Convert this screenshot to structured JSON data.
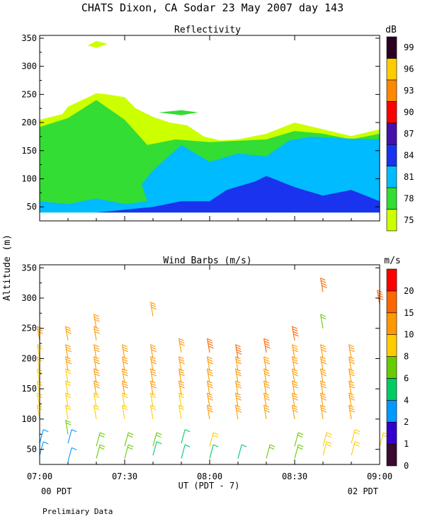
{
  "figure": {
    "title": "CHATS Dixon, CA  Sodar  23 May 2007  day 143",
    "shared_ylabel": "Altitude (m)",
    "xlabel": "UT  (PDT - 7)",
    "x_left_note": "00 PDT",
    "x_right_note": "02 PDT",
    "footer": "Prelimiary Data"
  },
  "chart_data": [
    {
      "type": "heatmap",
      "title": "Reflectivity",
      "colorbar_unit": "dB",
      "x_ticks": [
        "07:00",
        "07:30",
        "08:00",
        "08:30",
        "09:00"
      ],
      "xlim": [
        0,
        120
      ],
      "y_ticks": [
        50,
        100,
        150,
        200,
        250,
        300,
        350
      ],
      "ylim": [
        25,
        355
      ],
      "colorbar": {
        "labels": [
          "75",
          "78",
          "81",
          "84",
          "87",
          "90",
          "93",
          "96",
          "99"
        ],
        "colors": [
          "#ccff00",
          "#33dd33",
          "#00bbff",
          "#1a33ee",
          "#4411aa",
          "#ff0000",
          "#ff8800",
          "#ffcc00",
          "#2a0022"
        ]
      },
      "contours": [
        {
          "level": "75 dB",
          "color": "#ccff00",
          "points": [
            [
              0,
              205
            ],
            [
              8,
              215
            ],
            [
              10,
              228
            ],
            [
              20,
              252
            ],
            [
              24,
              250
            ],
            [
              30,
              245
            ],
            [
              34,
              225
            ],
            [
              40,
              210
            ],
            [
              46,
              200
            ],
            [
              52,
              195
            ],
            [
              58,
              175
            ],
            [
              64,
              168
            ],
            [
              70,
              170
            ],
            [
              80,
              180
            ],
            [
              90,
              200
            ],
            [
              100,
              188
            ],
            [
              110,
              176
            ],
            [
              120,
              188
            ],
            [
              120,
              40
            ],
            [
              0,
              40
            ]
          ]
        },
        {
          "level": "75 dB",
          "color": "#ccff00",
          "points": [
            [
              17,
              337
            ],
            [
              20,
              345
            ],
            [
              24,
              340
            ],
            [
              20,
              333
            ]
          ]
        },
        {
          "level": "78 dB",
          "color": "#33dd33",
          "points": [
            [
              0,
              192
            ],
            [
              10,
              208
            ],
            [
              20,
              240
            ],
            [
              30,
              205
            ],
            [
              38,
              160
            ],
            [
              48,
              170
            ],
            [
              60,
              165
            ],
            [
              80,
              170
            ],
            [
              90,
              185
            ],
            [
              100,
              180
            ],
            [
              110,
              170
            ],
            [
              120,
              180
            ],
            [
              120,
              40
            ],
            [
              0,
              40
            ]
          ]
        },
        {
          "level": "78 dB",
          "color": "#33dd33",
          "points": [
            [
              42,
              218
            ],
            [
              50,
              222
            ],
            [
              56,
              218
            ],
            [
              50,
              213
            ]
          ]
        },
        {
          "level": "81 dB",
          "color": "#00bbff",
          "points": [
            [
              0,
              60
            ],
            [
              10,
              55
            ],
            [
              20,
              65
            ],
            [
              30,
              55
            ],
            [
              38,
              60
            ],
            [
              36,
              90
            ],
            [
              40,
              115
            ],
            [
              50,
              160
            ],
            [
              60,
              130
            ],
            [
              70,
              145
            ],
            [
              80,
              140
            ],
            [
              88,
              168
            ],
            [
              96,
              175
            ],
            [
              106,
              172
            ],
            [
              120,
              170
            ],
            [
              120,
              40
            ],
            [
              0,
              40
            ]
          ]
        },
        {
          "level": "84 dB",
          "color": "#1a33ee",
          "points": [
            [
              20,
              40
            ],
            [
              40,
              50
            ],
            [
              50,
              60
            ],
            [
              60,
              60
            ],
            [
              66,
              80
            ],
            [
              76,
              95
            ],
            [
              80,
              105
            ],
            [
              90,
              85
            ],
            [
              100,
              70
            ],
            [
              110,
              80
            ],
            [
              120,
              60
            ],
            [
              120,
              40
            ]
          ]
        }
      ]
    },
    {
      "type": "scatter",
      "title": "Wind Barbs (m/s)",
      "colorbar_unit": "m/s",
      "x_ticks": [
        "07:00",
        "07:30",
        "08:00",
        "08:30",
        "09:00"
      ],
      "xlim": [
        0,
        120
      ],
      "y_ticks": [
        50,
        100,
        150,
        200,
        250,
        300,
        350
      ],
      "ylim": [
        25,
        355
      ],
      "colorbar": {
        "labels": [
          "0",
          "1",
          "2",
          "4",
          "6",
          "8",
          "10",
          "15",
          "20"
        ],
        "colors": [
          "#3b0a33",
          "#3300cc",
          "#0099ff",
          "#00cc66",
          "#66cc00",
          "#ffcc00",
          "#ff9900",
          "#ff6600",
          "#ff0000"
        ]
      },
      "barb_columns": [
        {
          "time_min": 0,
          "altitudes": [
            40,
            60,
            100,
            120,
            140,
            160,
            180,
            200,
            230
          ],
          "speeds": [
            3,
            3,
            9,
            9,
            9,
            9,
            9,
            9,
            10
          ]
        },
        {
          "time_min": 10,
          "altitudes": [
            30,
            60,
            75,
            100,
            120,
            140,
            160,
            180,
            200,
            230
          ],
          "speeds": [
            3,
            3,
            6,
            9,
            9,
            9,
            9,
            10,
            10,
            10
          ]
        },
        {
          "time_min": 20,
          "altitudes": [
            35,
            55,
            100,
            120,
            140,
            160,
            180,
            200,
            230,
            250
          ],
          "speeds": [
            6,
            6,
            9,
            9,
            10,
            10,
            10,
            10,
            11,
            11
          ]
        },
        {
          "time_min": 30,
          "altitudes": [
            35,
            55,
            100,
            120,
            140,
            160,
            180,
            200
          ],
          "speeds": [
            6,
            6,
            9,
            9,
            10,
            10,
            10,
            10
          ]
        },
        {
          "time_min": 40,
          "altitudes": [
            40,
            55,
            100,
            120,
            140,
            160,
            180,
            200,
            270
          ],
          "speeds": [
            5,
            6,
            9,
            9,
            10,
            10,
            10,
            10,
            12
          ]
        },
        {
          "time_min": 50,
          "altitudes": [
            35,
            60,
            100,
            120,
            140,
            160,
            180,
            210
          ],
          "speeds": [
            5,
            4,
            9,
            9,
            10,
            10,
            10,
            10
          ]
        },
        {
          "time_min": 60,
          "altitudes": [
            35,
            55,
            100,
            120,
            140,
            160,
            180,
            210
          ],
          "speeds": [
            5,
            8,
            10,
            10,
            10,
            10,
            11,
            15
          ]
        },
        {
          "time_min": 70,
          "altitudes": [
            35,
            100,
            120,
            140,
            160,
            180,
            200
          ],
          "speeds": [
            4,
            10,
            10,
            10,
            10,
            11,
            15
          ]
        },
        {
          "time_min": 80,
          "altitudes": [
            35,
            100,
            120,
            140,
            160,
            180,
            210
          ],
          "speeds": [
            6,
            10,
            10,
            10,
            11,
            12,
            17
          ]
        },
        {
          "time_min": 90,
          "altitudes": [
            35,
            55,
            100,
            120,
            140,
            160,
            180,
            200,
            230
          ],
          "speeds": [
            6,
            6,
            10,
            10,
            10,
            10,
            11,
            12,
            17
          ]
        },
        {
          "time_min": 100,
          "altitudes": [
            40,
            55,
            100,
            120,
            140,
            160,
            180,
            200,
            250,
            310
          ],
          "speeds": [
            8,
            8,
            10,
            10,
            10,
            11,
            11,
            12,
            7,
            18
          ]
        },
        {
          "time_min": 110,
          "altitudes": [
            40,
            60,
            100,
            120,
            140,
            160,
            180,
            200
          ],
          "speeds": [
            8,
            8,
            10,
            10,
            10,
            11,
            11,
            11
          ]
        },
        {
          "time_min": 120,
          "altitudes": [
            55,
            290
          ],
          "speeds": [
            8,
            18
          ]
        }
      ]
    }
  ]
}
